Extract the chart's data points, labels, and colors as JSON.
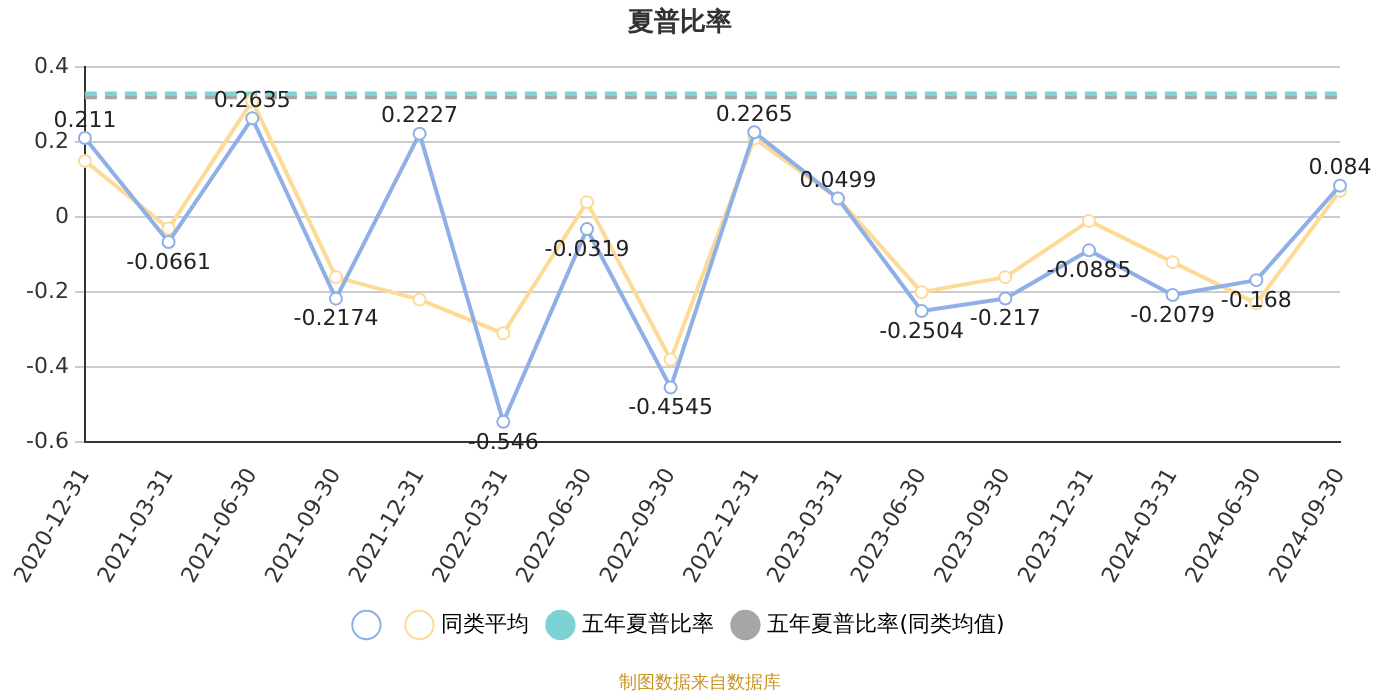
{
  "chart_data": {
    "type": "line",
    "title": "夏普比率",
    "categories": [
      "2020-12-31",
      "2021-03-31",
      "2021-06-30",
      "2021-09-30",
      "2021-12-31",
      "2022-03-31",
      "2022-06-30",
      "2022-09-30",
      "2022-12-31",
      "2023-03-31",
      "2023-06-30",
      "2023-09-30",
      "2023-12-31",
      "2024-03-31",
      "2024-06-30",
      "2024-09-30"
    ],
    "series": [
      {
        "color": "#8eb0e6",
        "marker": "circle",
        "data_labels": true,
        "values": [
          0.211,
          -0.0661,
          0.2635,
          -0.2174,
          0.2227,
          -0.546,
          -0.0319,
          -0.4545,
          0.2265,
          0.0499,
          -0.2504,
          -0.217,
          -0.0885,
          -0.2079,
          -0.168,
          0.084
        ]
      },
      {
        "name": "同类平均",
        "color": "#fddb97",
        "marker": "circle",
        "values": [
          0.15,
          -0.03,
          0.31,
          -0.16,
          -0.22,
          -0.31,
          0.04,
          -0.38,
          0.21,
          0.05,
          -0.2,
          -0.16,
          -0.01,
          -0.12,
          -0.23,
          0.07
        ]
      },
      {
        "name": "五年夏普比率",
        "color": "#7dd3d3",
        "marker": "none",
        "line_style": "dashed",
        "values": [
          0.33,
          0.33,
          0.33,
          0.33,
          0.33,
          0.33,
          0.33,
          0.33,
          0.33,
          0.33,
          0.33,
          0.33,
          0.33,
          0.33,
          0.33,
          0.33
        ]
      },
      {
        "name": "五年夏普比率(同类均值)",
        "color": "#a6a6a6",
        "marker": "none",
        "line_style": "dashed",
        "values": [
          0.32,
          0.32,
          0.32,
          0.32,
          0.32,
          0.32,
          0.32,
          0.32,
          0.32,
          0.32,
          0.32,
          0.32,
          0.32,
          0.32,
          0.32,
          0.32
        ]
      }
    ],
    "ylim": [
      -0.6,
      0.4
    ],
    "yticks": [
      -0.6,
      -0.4,
      -0.2,
      0,
      0.2,
      0.4
    ],
    "grid": "y",
    "legend": "bottom",
    "annotations": [
      "制图数据来自数据库"
    ]
  }
}
